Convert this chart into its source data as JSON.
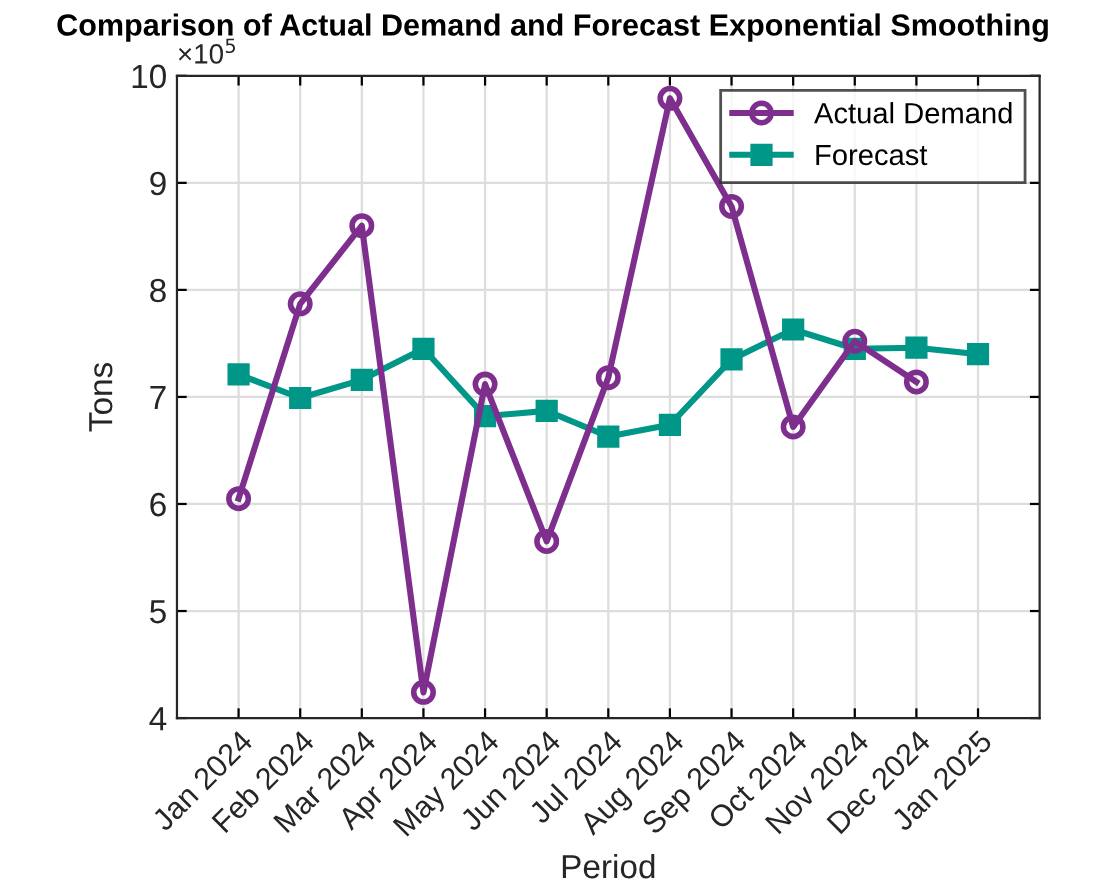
{
  "chart_data": {
    "type": "line",
    "title": "Comparison of Actual Demand and Forecast Exponential Smoothing",
    "xlabel": "Period",
    "ylabel": "Tons",
    "annotations": [
      "×10$^{5}$"
    ],
    "categories": [
      "Jan 2024",
      "Feb 2024",
      "Mar 2024",
      "Apr 2024",
      "May 2024",
      "Jun 2024",
      "Jul 2024",
      "Aug 2024",
      "Sep 2024",
      "Oct 2024",
      "Nov 2024",
      "Dec 2024",
      "Jan 2025"
    ],
    "series": [
      {
        "name": "Actual Demand",
        "color": "#7e2f8e",
        "marker": "circle",
        "values": [
          6.05,
          7.87,
          8.6,
          4.24,
          7.12,
          5.65,
          7.18,
          9.79,
          8.78,
          6.72,
          7.52,
          7.14,
          null
        ]
      },
      {
        "name": "Forecast",
        "color": "#009688",
        "marker": "square",
        "values": [
          7.21,
          6.99,
          7.16,
          7.45,
          6.82,
          6.87,
          6.63,
          6.74,
          7.35,
          7.63,
          7.45,
          7.46,
          7.4
        ]
      }
    ],
    "ylim": [
      4,
      10
    ],
    "yticks": [
      4,
      5,
      6,
      7,
      8,
      9,
      10
    ],
    "grid": true,
    "legend": "top right",
    "line_style": "solid"
  }
}
